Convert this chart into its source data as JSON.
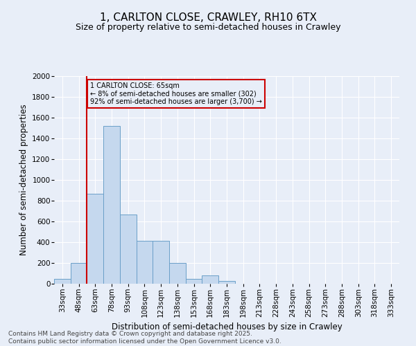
{
  "title1": "1, CARLTON CLOSE, CRAWLEY, RH10 6TX",
  "title2": "Size of property relative to semi-detached houses in Crawley",
  "xlabel": "Distribution of semi-detached houses by size in Crawley",
  "ylabel": "Number of semi-detached properties",
  "bar_color": "#c5d8ee",
  "bar_edge_color": "#6a9fc8",
  "bins": [
    "33sqm",
    "48sqm",
    "63sqm",
    "78sqm",
    "93sqm",
    "108sqm",
    "123sqm",
    "138sqm",
    "153sqm",
    "168sqm",
    "183sqm",
    "198sqm",
    "213sqm",
    "228sqm",
    "243sqm",
    "258sqm",
    "273sqm",
    "288sqm",
    "303sqm",
    "318sqm",
    "333sqm"
  ],
  "values": [
    50,
    200,
    870,
    1520,
    670,
    415,
    415,
    200,
    50,
    80,
    30,
    0,
    0,
    0,
    0,
    0,
    0,
    0,
    0,
    0,
    0
  ],
  "ylim": [
    0,
    2000
  ],
  "yticks": [
    0,
    200,
    400,
    600,
    800,
    1000,
    1200,
    1400,
    1600,
    1800,
    2000
  ],
  "vline_bin_index": 2,
  "annotation_title": "1 CARLTON CLOSE: 65sqm",
  "annotation_line1": "← 8% of semi-detached houses are smaller (302)",
  "annotation_line2": "92% of semi-detached houses are larger (3,700) →",
  "footer1": "Contains HM Land Registry data © Crown copyright and database right 2025.",
  "footer2": "Contains public sector information licensed under the Open Government Licence v3.0.",
  "background_color": "#e8eef8",
  "plot_bg_color": "#e8eef8",
  "grid_color": "#ffffff",
  "vline_color": "#cc0000",
  "annotation_box_color": "#cc0000",
  "title_fontsize": 11,
  "subtitle_fontsize": 9,
  "axis_label_fontsize": 8.5,
  "tick_fontsize": 7.5,
  "footer_fontsize": 6.5
}
